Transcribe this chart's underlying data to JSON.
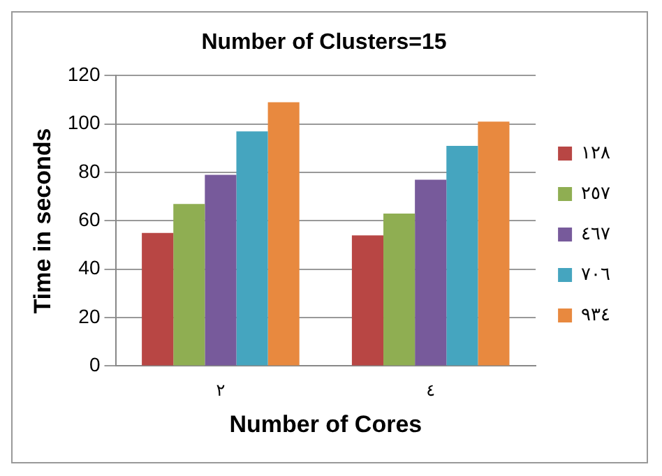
{
  "chart_data": {
    "type": "bar",
    "title": "Number of Clusters=15",
    "xlabel": "Number of Cores",
    "ylabel": "Time in seconds",
    "categories": [
      "٢",
      "٤"
    ],
    "series": [
      {
        "name": "١٢٨",
        "color": "#b84644",
        "values": [
          55,
          54
        ]
      },
      {
        "name": "٢٥٧",
        "color": "#8fae52",
        "values": [
          67,
          63
        ]
      },
      {
        "name": "٤٦٧",
        "color": "#775a9b",
        "values": [
          79,
          77
        ]
      },
      {
        "name": "٧٠٦",
        "color": "#45a5bf",
        "values": [
          97,
          91
        ]
      },
      {
        "name": "٩٣٤",
        "color": "#e8893f",
        "values": [
          109,
          101
        ]
      }
    ],
    "ylim": [
      0,
      120
    ],
    "yticks": [
      0,
      20,
      40,
      60,
      80,
      100,
      120
    ],
    "grid": "y",
    "legend": "right"
  }
}
